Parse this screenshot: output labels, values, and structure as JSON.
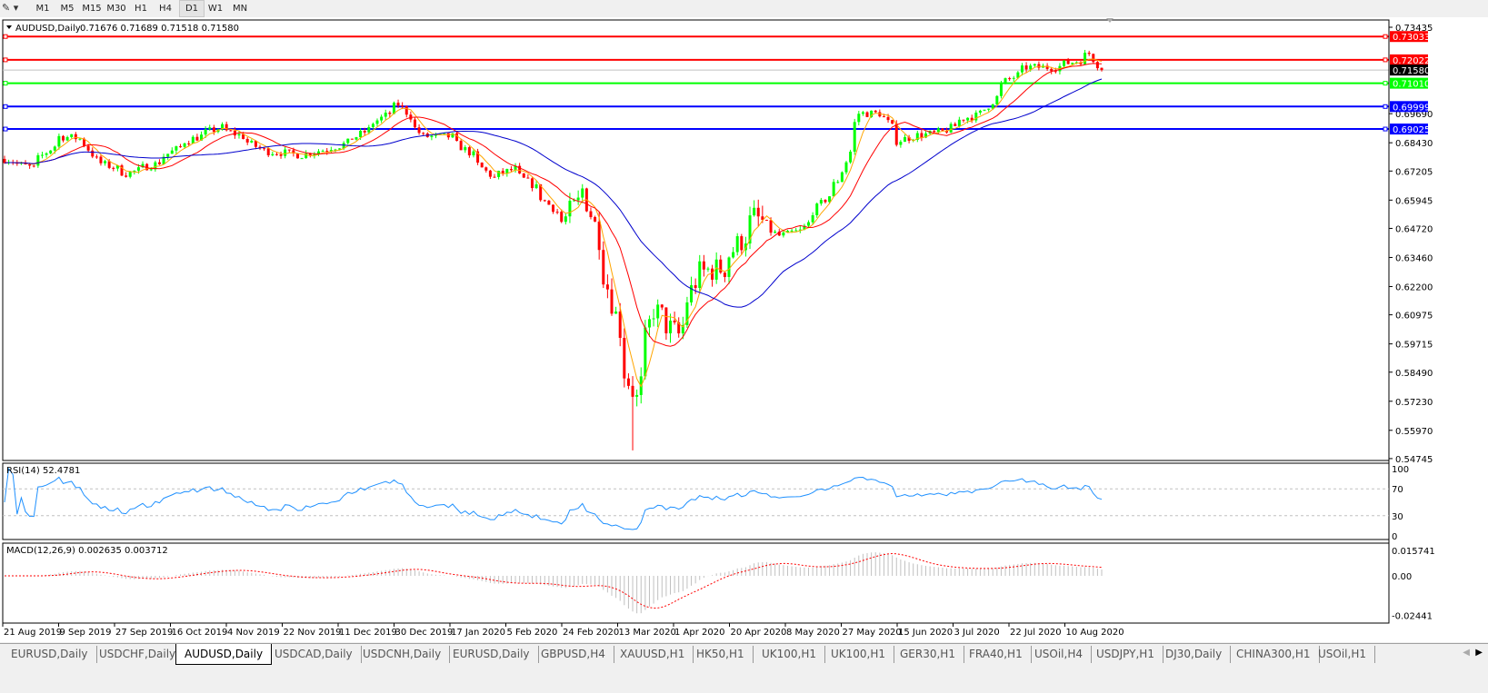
{
  "toolbar": {
    "timeframes": [
      "M1",
      "M5",
      "M15",
      "M30",
      "H1",
      "H4",
      "D1",
      "W1",
      "MN"
    ],
    "active_timeframe": "D1"
  },
  "chart_data": {
    "type": "candlestick",
    "title": "AUDUSD,Daily",
    "ohlc_readout": "0.71676 0.71689 0.71518 0.71580",
    "last": {
      "open": 0.71676,
      "high": 0.71689,
      "low": 0.71518,
      "close": 0.7158
    },
    "y_ticks": [
      "0.73435",
      "0.69690",
      "0.68430",
      "0.67205",
      "0.65945",
      "0.64720",
      "0.63460",
      "0.62200",
      "0.60975",
      "0.59715",
      "0.58490",
      "0.57230",
      "0.55970",
      "0.54745"
    ],
    "ylim": [
      0.54745,
      0.73435
    ],
    "x_ticks": [
      "21 Aug 2019",
      "9 Sep 2019",
      "27 Sep 2019",
      "16 Oct 2019",
      "4 Nov 2019",
      "22 Nov 2019",
      "11 Dec 2019",
      "30 Dec 2019",
      "17 Jan 2020",
      "5 Feb 2020",
      "24 Feb 2020",
      "13 Mar 2020",
      "1 Apr 2020",
      "20 Apr 2020",
      "8 May 2020",
      "27 May 2020",
      "15 Jun 2020",
      "3 Jul 2020",
      "22 Jul 2020",
      "10 Aug 2020"
    ],
    "approx_closes": [
      [
        "2019-08-21",
        0.6773
      ],
      [
        "2019-08-30",
        0.6733
      ],
      [
        "2019-09-09",
        0.687
      ],
      [
        "2019-09-16",
        0.686
      ],
      [
        "2019-09-20",
        0.677
      ],
      [
        "2019-10-01",
        0.671
      ],
      [
        "2019-10-10",
        0.675
      ],
      [
        "2019-10-21",
        0.685
      ],
      [
        "2019-11-01",
        0.691
      ],
      [
        "2019-11-08",
        0.687
      ],
      [
        "2019-11-15",
        0.681
      ],
      [
        "2019-11-28",
        0.679
      ],
      [
        "2019-12-11",
        0.683
      ],
      [
        "2019-12-17",
        0.687
      ],
      [
        "2019-12-31",
        0.701
      ],
      [
        "2020-01-08",
        0.687
      ],
      [
        "2020-01-17",
        0.687
      ],
      [
        "2020-01-24",
        0.679
      ],
      [
        "2020-01-31",
        0.669
      ],
      [
        "2020-02-07",
        0.673
      ],
      [
        "2020-02-14",
        0.665
      ],
      [
        "2020-02-24",
        0.65
      ],
      [
        "2020-03-02",
        0.664
      ],
      [
        "2020-03-09",
        0.628
      ],
      [
        "2020-03-16",
        0.585
      ],
      [
        "2020-03-19",
        0.573
      ],
      [
        "2020-03-25",
        0.612
      ],
      [
        "2020-04-02",
        0.601
      ],
      [
        "2020-04-09",
        0.628
      ],
      [
        "2020-04-17",
        0.63
      ],
      [
        "2020-04-28",
        0.652
      ],
      [
        "2020-05-06",
        0.644
      ],
      [
        "2020-05-13",
        0.646
      ],
      [
        "2020-05-20",
        0.658
      ],
      [
        "2020-05-26",
        0.668
      ],
      [
        "2020-06-02",
        0.697
      ],
      [
        "2020-06-09",
        0.697
      ],
      [
        "2020-06-15",
        0.685
      ],
      [
        "2020-06-19",
        0.687
      ],
      [
        "2020-06-30",
        0.689
      ],
      [
        "2020-07-07",
        0.695
      ],
      [
        "2020-07-13",
        0.697
      ],
      [
        "2020-07-21",
        0.711
      ],
      [
        "2020-07-28",
        0.717
      ],
      [
        "2020-08-06",
        0.717
      ],
      [
        "2020-08-14",
        0.72
      ],
      [
        "2020-08-18",
        0.723
      ],
      [
        "2020-08-21",
        0.7158
      ]
    ],
    "period_low": 0.551,
    "moving_average_colors": [
      "#ffa500",
      "#ff0000",
      "#0000cd"
    ],
    "bull_color": "#00ff00",
    "bear_color": "#ff0000",
    "horizontal_lines": [
      {
        "price": "0.73033",
        "color": "#ff0000"
      },
      {
        "price": "0.72022",
        "color": "#ff0000"
      },
      {
        "price": "0.71010",
        "color": "#00ff00"
      },
      {
        "price": "0.69999",
        "color": "#0000ff"
      },
      {
        "price": "0.69025",
        "color": "#0000ff"
      }
    ],
    "bid_line": {
      "price": "0.71580",
      "color": "#c0c0c0"
    },
    "rsi": {
      "label": "RSI(14) 52.4781",
      "levels": [
        70,
        30
      ],
      "y_ticks": [
        "100",
        "70",
        "30",
        "0"
      ],
      "color": "#1e90ff"
    },
    "macd": {
      "label": "MACD(12,26,9) 0.002635 0.003712",
      "y_ticks": [
        "0.015741",
        "0.00",
        "-0.02441"
      ],
      "histogram_color": "#c0c0c0",
      "signal_color": "#ff0000"
    }
  },
  "tabs": {
    "items": [
      "EURUSD,Daily",
      "USDCHF,Daily",
      "AUDUSD,Daily",
      "USDCAD,Daily",
      "USDCNH,Daily",
      "EURUSD,Daily",
      "GBPUSD,H4",
      "XAUUSD,H1",
      "HK50,H1",
      "UK100,H1",
      "UK100,H1",
      "GER30,H1",
      "FRA40,H1",
      "USOil,H4",
      "USDJPY,H1",
      "DJ30,Daily",
      "CHINA300,H1",
      "USOil,H1"
    ],
    "active": "AUDUSD,Daily"
  }
}
